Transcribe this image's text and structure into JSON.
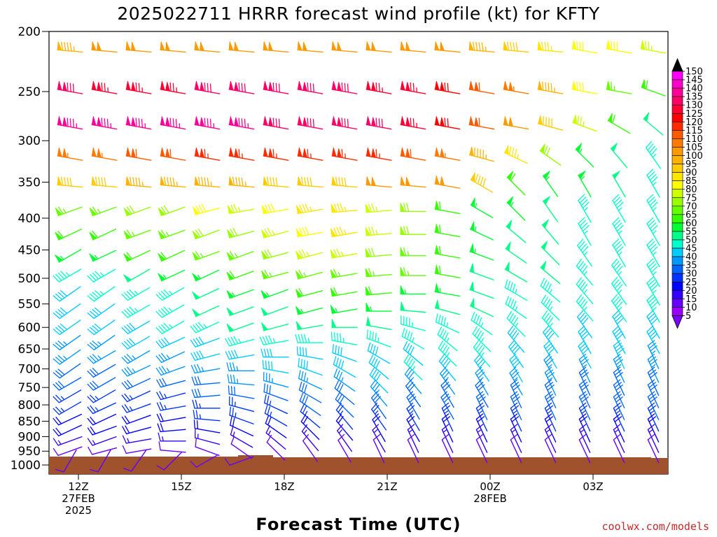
{
  "chart_data": {
    "type": "wind-barb profile",
    "title": "2025022711 HRRR forecast wind profile (kt) for KFTY",
    "xlabel": "Forecast Time (UTC)",
    "credit": "coolwx.com/models",
    "ylim": [
      1000,
      200
    ],
    "pressure_ticks": [
      200,
      250,
      300,
      350,
      400,
      450,
      500,
      550,
      600,
      650,
      700,
      750,
      800,
      850,
      900,
      950,
      1000
    ],
    "x_ticks": [
      {
        "hour": 0,
        "lines": [
          "12Z",
          "27FEB",
          "2025"
        ]
      },
      {
        "hour": 3,
        "lines": [
          "15Z"
        ]
      },
      {
        "hour": 6,
        "lines": [
          "18Z"
        ]
      },
      {
        "hour": 9,
        "lines": [
          "21Z"
        ]
      },
      {
        "hour": 12,
        "lines": [
          "00Z",
          "28FEB"
        ]
      },
      {
        "hour": 15,
        "lines": [
          "03Z"
        ]
      }
    ],
    "forecast_hours": [
      0,
      1,
      2,
      3,
      4,
      5,
      6,
      7,
      8,
      9,
      10,
      11,
      12,
      13,
      14,
      15,
      16,
      17
    ],
    "levels": [
      215,
      250,
      285,
      320,
      355,
      390,
      425,
      460,
      495,
      530,
      565,
      600,
      635,
      670,
      705,
      740,
      775,
      810,
      845,
      880,
      915,
      950,
      985
    ],
    "wind_speed_kt": [
      [
        95,
        100,
        100,
        100,
        100,
        100,
        100,
        100,
        100,
        100,
        100,
        100,
        95,
        90,
        85,
        80,
        80,
        75
      ],
      [
        130,
        125,
        125,
        125,
        130,
        130,
        130,
        130,
        130,
        125,
        125,
        120,
        110,
        105,
        95,
        80,
        65,
        60
      ],
      [
        135,
        135,
        135,
        135,
        135,
        135,
        130,
        130,
        130,
        130,
        125,
        120,
        110,
        100,
        90,
        75,
        60,
        50
      ],
      [
        105,
        105,
        110,
        110,
        115,
        115,
        115,
        115,
        115,
        115,
        110,
        105,
        95,
        85,
        70,
        55,
        50,
        45
      ],
      [
        90,
        90,
        95,
        95,
        95,
        95,
        90,
        90,
        90,
        100,
        100,
        100,
        90,
        60,
        55,
        55,
        50,
        45
      ],
      [
        65,
        65,
        70,
        70,
        80,
        75,
        80,
        85,
        85,
        75,
        70,
        60,
        55,
        55,
        50,
        45,
        45,
        45
      ],
      [
        60,
        60,
        65,
        65,
        70,
        70,
        75,
        80,
        85,
        75,
        70,
        60,
        55,
        50,
        50,
        45,
        45,
        45
      ],
      [
        55,
        55,
        60,
        60,
        65,
        65,
        70,
        75,
        75,
        70,
        65,
        60,
        55,
        50,
        50,
        45,
        45,
        45
      ],
      [
        45,
        45,
        50,
        55,
        55,
        60,
        65,
        65,
        65,
        65,
        65,
        60,
        50,
        50,
        50,
        45,
        45,
        45
      ],
      [
        40,
        45,
        45,
        45,
        50,
        55,
        55,
        60,
        60,
        60,
        55,
        55,
        50,
        45,
        45,
        45,
        45,
        45
      ],
      [
        40,
        40,
        45,
        45,
        50,
        50,
        50,
        55,
        55,
        55,
        50,
        50,
        50,
        45,
        45,
        45,
        45,
        45
      ],
      [
        40,
        40,
        40,
        45,
        45,
        50,
        50,
        50,
        50,
        50,
        45,
        45,
        45,
        45,
        45,
        40,
        40,
        40
      ],
      [
        35,
        35,
        40,
        40,
        40,
        45,
        45,
        45,
        45,
        45,
        45,
        45,
        45,
        40,
        40,
        40,
        40,
        40
      ],
      [
        35,
        35,
        35,
        35,
        40,
        40,
        40,
        40,
        40,
        40,
        40,
        45,
        45,
        40,
        40,
        40,
        40,
        35
      ],
      [
        30,
        30,
        35,
        35,
        35,
        35,
        40,
        40,
        40,
        40,
        45,
        40,
        40,
        40,
        35,
        35,
        35,
        35
      ],
      [
        30,
        30,
        30,
        30,
        30,
        35,
        35,
        35,
        35,
        40,
        35,
        35,
        35,
        35,
        35,
        30,
        30,
        30
      ],
      [
        25,
        25,
        25,
        25,
        30,
        30,
        30,
        30,
        30,
        35,
        30,
        30,
        30,
        30,
        30,
        30,
        30,
        30
      ],
      [
        25,
        25,
        25,
        25,
        25,
        25,
        25,
        30,
        30,
        30,
        30,
        30,
        30,
        30,
        30,
        30,
        30,
        30
      ],
      [
        20,
        20,
        20,
        20,
        25,
        25,
        25,
        25,
        25,
        25,
        25,
        25,
        25,
        25,
        25,
        25,
        25,
        25
      ],
      [
        20,
        20,
        20,
        20,
        20,
        20,
        20,
        20,
        20,
        20,
        20,
        20,
        20,
        20,
        20,
        20,
        20,
        20
      ],
      [
        15,
        15,
        15,
        15,
        15,
        15,
        15,
        15,
        15,
        15,
        15,
        15,
        15,
        15,
        15,
        15,
        15,
        15
      ],
      [
        10,
        10,
        10,
        10,
        10,
        10,
        10,
        10,
        10,
        10,
        10,
        10,
        10,
        10,
        10,
        10,
        10,
        10
      ],
      [
        10,
        10,
        10,
        10,
        10,
        10,
        null,
        null,
        null,
        null,
        null,
        null,
        null,
        null,
        null,
        null,
        null,
        null
      ]
    ],
    "wind_direction_deg": [
      [
        275,
        275,
        275,
        275,
        275,
        275,
        275,
        275,
        275,
        275,
        275,
        275,
        275,
        275,
        275,
        280,
        280,
        280
      ],
      [
        280,
        280,
        280,
        280,
        280,
        280,
        280,
        280,
        280,
        280,
        280,
        280,
        280,
        280,
        280,
        280,
        280,
        290
      ],
      [
        280,
        280,
        280,
        280,
        280,
        280,
        280,
        280,
        280,
        280,
        280,
        280,
        280,
        280,
        285,
        290,
        300,
        310
      ],
      [
        280,
        280,
        280,
        280,
        280,
        280,
        280,
        280,
        280,
        280,
        280,
        280,
        285,
        295,
        305,
        315,
        320,
        325
      ],
      [
        275,
        275,
        275,
        275,
        275,
        275,
        275,
        275,
        275,
        275,
        275,
        280,
        300,
        315,
        325,
        330,
        330,
        330
      ],
      [
        250,
        250,
        250,
        250,
        255,
        260,
        260,
        260,
        265,
        265,
        270,
        280,
        300,
        315,
        325,
        330,
        330,
        330
      ],
      [
        245,
        245,
        250,
        250,
        250,
        255,
        255,
        260,
        260,
        265,
        270,
        280,
        295,
        310,
        320,
        330,
        330,
        330
      ],
      [
        240,
        245,
        245,
        245,
        250,
        250,
        255,
        255,
        260,
        265,
        270,
        280,
        290,
        305,
        315,
        325,
        330,
        330
      ],
      [
        240,
        240,
        240,
        245,
        245,
        250,
        255,
        255,
        260,
        265,
        270,
        280,
        290,
        300,
        310,
        320,
        325,
        330
      ],
      [
        235,
        235,
        240,
        240,
        245,
        250,
        250,
        255,
        260,
        265,
        270,
        280,
        290,
        300,
        310,
        320,
        325,
        330
      ],
      [
        235,
        235,
        240,
        240,
        245,
        250,
        250,
        255,
        260,
        270,
        275,
        285,
        295,
        305,
        315,
        320,
        325,
        330
      ],
      [
        235,
        235,
        240,
        240,
        245,
        250,
        255,
        260,
        270,
        280,
        285,
        295,
        305,
        315,
        320,
        325,
        330,
        330
      ],
      [
        235,
        235,
        240,
        245,
        250,
        255,
        260,
        270,
        280,
        290,
        300,
        310,
        315,
        320,
        325,
        330,
        330,
        330
      ],
      [
        235,
        240,
        240,
        245,
        255,
        260,
        270,
        280,
        290,
        300,
        310,
        315,
        320,
        325,
        330,
        330,
        335,
        335
      ],
      [
        235,
        240,
        245,
        250,
        260,
        270,
        280,
        290,
        300,
        310,
        315,
        320,
        325,
        330,
        330,
        335,
        335,
        335
      ],
      [
        240,
        240,
        245,
        255,
        265,
        275,
        285,
        295,
        305,
        315,
        320,
        325,
        330,
        330,
        335,
        335,
        335,
        335
      ],
      [
        240,
        240,
        245,
        255,
        265,
        280,
        290,
        300,
        310,
        320,
        325,
        330,
        330,
        335,
        335,
        335,
        335,
        335
      ],
      [
        240,
        245,
        250,
        260,
        270,
        285,
        295,
        305,
        315,
        325,
        330,
        330,
        335,
        335,
        335,
        335,
        335,
        335
      ],
      [
        245,
        245,
        250,
        260,
        275,
        290,
        300,
        310,
        320,
        325,
        330,
        335,
        335,
        335,
        335,
        335,
        335,
        335
      ],
      [
        245,
        250,
        255,
        265,
        280,
        295,
        305,
        315,
        320,
        330,
        330,
        335,
        335,
        335,
        335,
        335,
        335,
        335
      ],
      [
        250,
        250,
        260,
        270,
        285,
        300,
        310,
        320,
        325,
        330,
        335,
        335,
        335,
        335,
        335,
        335,
        335,
        335
      ],
      [
        250,
        255,
        260,
        275,
        290,
        305,
        315,
        325,
        330,
        335,
        335,
        335,
        335,
        335,
        335,
        335,
        335,
        335
      ],
      [
        210,
        210,
        215,
        225,
        240,
        250,
        null,
        null,
        null,
        null,
        null,
        null,
        null,
        null,
        null,
        null,
        null,
        null
      ]
    ],
    "colorbar": {
      "labels": [
        150,
        145,
        140,
        135,
        130,
        125,
        120,
        115,
        110,
        105,
        100,
        95,
        90,
        85,
        80,
        75,
        70,
        65,
        60,
        55,
        50,
        45,
        40,
        35,
        30,
        25,
        20,
        15,
        10,
        5
      ],
      "colors": [
        "#ff00ff",
        "#ff00cc",
        "#ff0099",
        "#ff0066",
        "#ff0033",
        "#ff0000",
        "#ff2a00",
        "#ff5a00",
        "#ff7a00",
        "#ff9900",
        "#ffb300",
        "#ffcc00",
        "#ffe600",
        "#ffff00",
        "#ccff00",
        "#99ff00",
        "#66ff00",
        "#33ff00",
        "#00ff33",
        "#00ff88",
        "#00ffcc",
        "#00ccff",
        "#0099ff",
        "#0066ff",
        "#0033ff",
        "#0000ff",
        "#3300ff",
        "#6600ff",
        "#9900ff",
        "#b400ff"
      ],
      "top_color": "#000000",
      "bottom_color": "#7a00ff"
    },
    "terrain_color": "#a0522d"
  }
}
